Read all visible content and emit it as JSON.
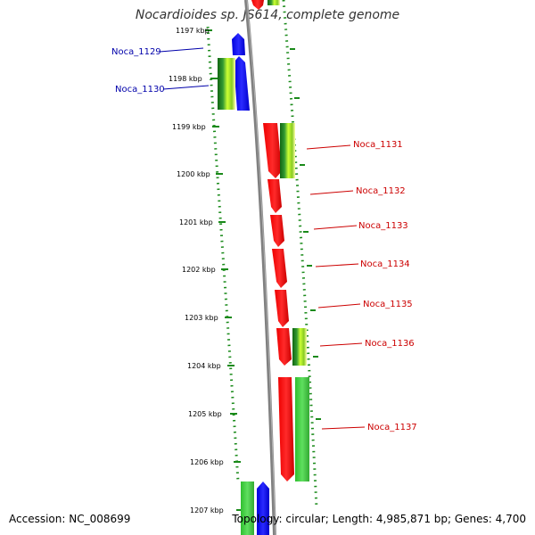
{
  "title": "Nocardioides sp. JS614, complete genome",
  "accession": "Accession: NC_008699",
  "info": "Topology: circular; Length: 4,985,871 bp; Genes: 4,700",
  "colors": {
    "forward_gene": "#ff0000",
    "reverse_gene": "#0000ff",
    "rna_gene": "#33cc33",
    "label_forward": "#cc0000",
    "label_reverse": "#0000aa",
    "ruler": "#1a8a1a",
    "backbone": "#808080"
  },
  "scale": [
    "1197 kbp",
    "1198 kbp",
    "1199 kbp",
    "1200 kbp",
    "1201 kbp",
    "1202 kbp",
    "1203 kbp",
    "1204 kbp",
    "1205 kbp",
    "1206 kbp",
    "1207 kbp"
  ],
  "labels": [
    {
      "text": "Noca_1129",
      "strand": "reverse"
    },
    {
      "text": "Noca_1130",
      "strand": "reverse"
    },
    {
      "text": "Noca_1131",
      "strand": "forward"
    },
    {
      "text": "Noca_1132",
      "strand": "forward"
    },
    {
      "text": "Noca_1133",
      "strand": "forward"
    },
    {
      "text": "Noca_1134",
      "strand": "forward"
    },
    {
      "text": "Noca_1135",
      "strand": "forward"
    },
    {
      "text": "Noca_1136",
      "strand": "forward"
    },
    {
      "text": "Noca_1137",
      "strand": "forward"
    }
  ]
}
